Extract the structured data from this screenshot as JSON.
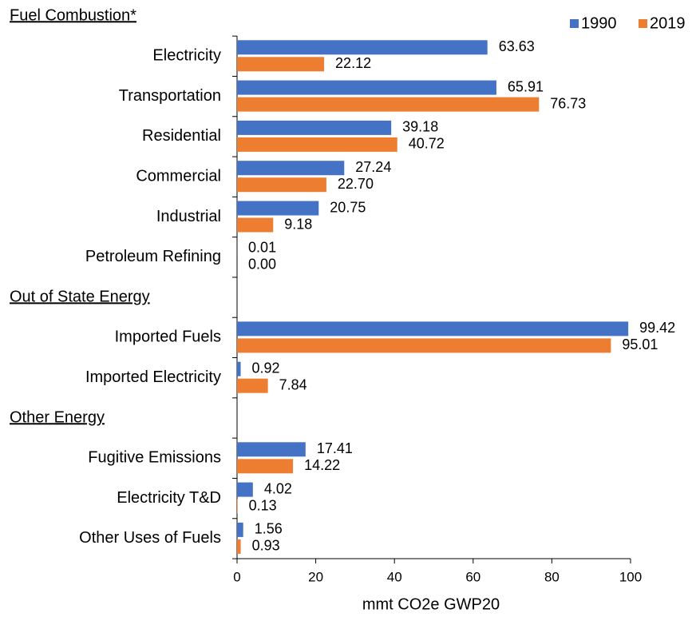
{
  "chart_data": {
    "type": "barh",
    "xlabel": "mmt CO2e GWP20",
    "categories": [
      "Fuel Combustion*",
      "Electricity",
      "Transportation",
      "Residential",
      "Commercial",
      "Industrial",
      "Petroleum Refining",
      "Out of State Energy",
      "Imported Fuels",
      "Imported Electricity",
      "Other Energy",
      "Fugitive Emissions",
      "Electricity T&D",
      "Other Uses of Fuels"
    ],
    "series": [
      {
        "name": "1990",
        "color": "#4472c4",
        "values": [
          null,
          63.63,
          65.91,
          39.18,
          27.24,
          20.75,
          0.01,
          null,
          99.42,
          0.92,
          null,
          17.41,
          4.02,
          1.56
        ],
        "value_labels": [
          null,
          "63.63",
          "65.91",
          "39.18",
          "27.24",
          "20.75",
          "0.01",
          null,
          "99.42",
          "0.92",
          null,
          "17.41",
          "4.02",
          "1.56"
        ]
      },
      {
        "name": "2019",
        "color": "#ed7d31",
        "values": [
          null,
          22.12,
          76.73,
          40.72,
          22.7,
          9.18,
          0,
          null,
          95.01,
          7.84,
          null,
          14.22,
          0.13,
          0.93
        ],
        "value_labels": [
          null,
          "22.12",
          "76.73",
          "40.72",
          "22.70",
          "9.18",
          "0.00",
          null,
          "95.01",
          "7.84",
          null,
          "14.22",
          "0.13",
          "0.93"
        ]
      }
    ],
    "xlim": [
      0,
      100
    ],
    "xticks": [
      0,
      20,
      40,
      60,
      80,
      100
    ],
    "legend": "top-right",
    "grid": false
  }
}
